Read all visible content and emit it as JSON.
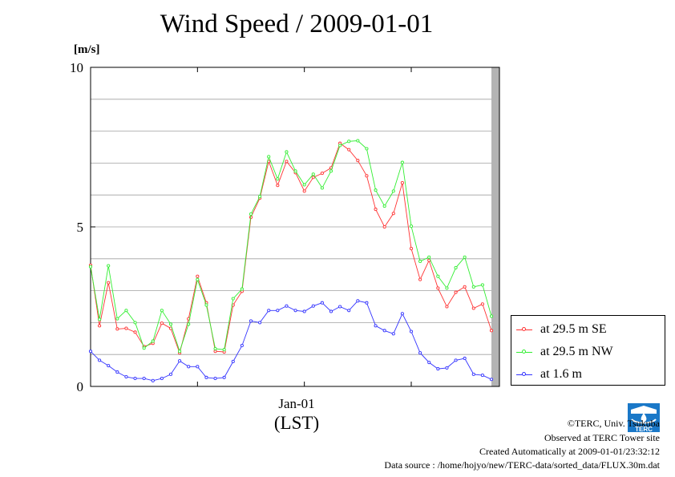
{
  "page": {
    "title": "Wind Speed / 2009-01-01",
    "unit_label": "[m/s]",
    "x_category": "Jan-01",
    "x_unit": "(LST)"
  },
  "footer": {
    "copyright": "©TERC, Univ. Tsukuba",
    "observed": "Observed at TERC Tower site",
    "created": "Created Automatically at 2009-01-01/23:32:12",
    "source": "Data source : /home/hojyo/new/TERC-data/sorted_data/FLUX.30m.dat"
  },
  "logo": {
    "icon": "terc-logo-icon",
    "text": "TERC"
  },
  "colors": {
    "se": "#ff3333",
    "nw": "#33ee33",
    "m16": "#3333ff",
    "band": "#b4b4b4"
  },
  "chart_data": {
    "type": "line",
    "title": "Wind Speed / 2009-01-01",
    "ylabel": "[m/s]",
    "xlabel": "(LST)",
    "x_tick_label": "Jan-01",
    "ylim": [
      0,
      10
    ],
    "y_ticks": [
      "0",
      "5",
      "10"
    ],
    "grid": true,
    "legend_position": "bottom-right",
    "x_interval": "30 min, 00:00 to 23:00",
    "series": [
      {
        "name": "at 29.5 m SE",
        "color": "#ff3333",
        "values": [
          3.8,
          1.9,
          3.25,
          1.8,
          1.82,
          1.7,
          1.25,
          1.35,
          1.98,
          1.82,
          1.05,
          2.12,
          3.45,
          2.62,
          1.1,
          1.08,
          2.55,
          2.98,
          5.3,
          5.9,
          7.05,
          6.3,
          7.05,
          6.7,
          6.12,
          6.55,
          6.68,
          6.85,
          7.62,
          7.42,
          7.08,
          6.6,
          5.55,
          5.0,
          5.42,
          6.38,
          4.32,
          3.35,
          3.95,
          3.08,
          2.5,
          2.95,
          3.12,
          2.45,
          2.58,
          1.75
        ]
      },
      {
        "name": "at 29.5 m NW",
        "color": "#33ee33",
        "values": [
          3.75,
          2.1,
          3.78,
          2.12,
          2.38,
          2.0,
          1.2,
          1.42,
          2.38,
          1.95,
          1.1,
          1.95,
          3.35,
          2.55,
          1.18,
          1.15,
          2.75,
          3.05,
          5.4,
          5.95,
          7.2,
          6.5,
          7.35,
          6.75,
          6.32,
          6.65,
          6.22,
          6.75,
          7.55,
          7.68,
          7.7,
          7.45,
          6.15,
          5.65,
          6.12,
          7.02,
          5.02,
          3.92,
          4.05,
          3.45,
          3.08,
          3.72,
          4.05,
          3.12,
          3.18,
          2.2
        ]
      },
      {
        "name": "at 1.6 m",
        "color": "#3333ff",
        "values": [
          1.1,
          0.82,
          0.65,
          0.45,
          0.3,
          0.25,
          0.25,
          0.18,
          0.25,
          0.38,
          0.8,
          0.62,
          0.62,
          0.28,
          0.25,
          0.28,
          0.78,
          1.28,
          2.05,
          2.0,
          2.38,
          2.38,
          2.52,
          2.38,
          2.35,
          2.52,
          2.62,
          2.35,
          2.5,
          2.38,
          2.68,
          2.62,
          1.9,
          1.75,
          1.65,
          2.28,
          1.72,
          1.05,
          0.75,
          0.55,
          0.58,
          0.82,
          0.88,
          0.38,
          0.35,
          0.22
        ]
      }
    ]
  }
}
